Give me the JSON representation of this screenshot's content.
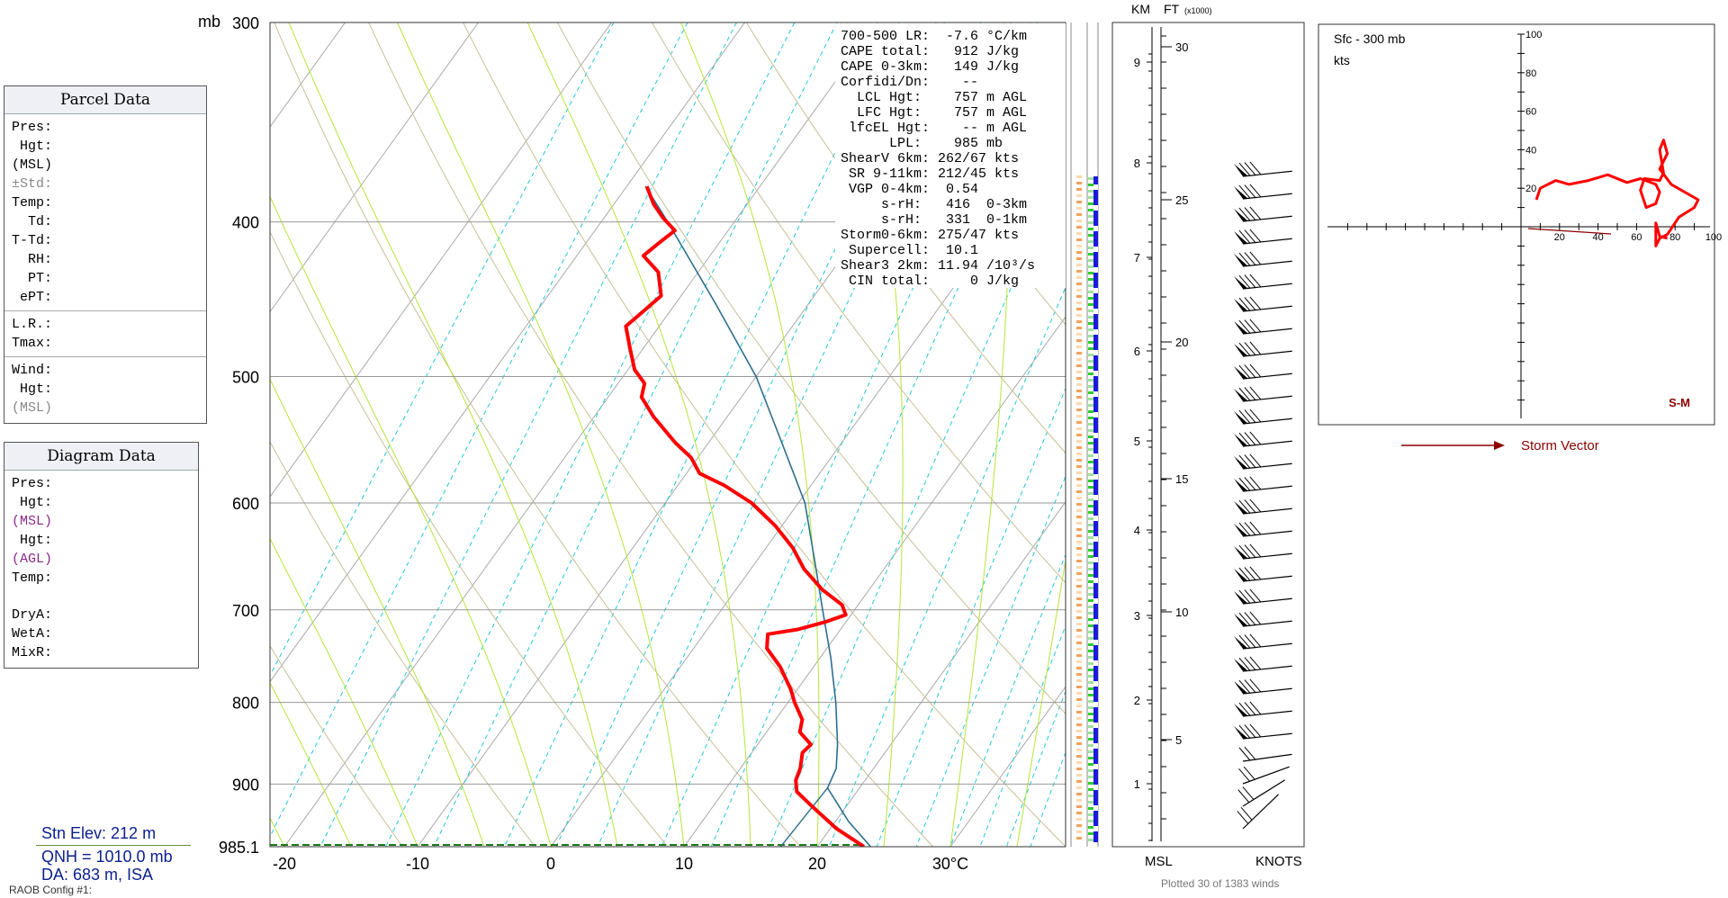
{
  "parcel_panel": {
    "title": "Parcel Data",
    "rows": [
      "Pres:",
      " Hgt:",
      "(MSL)",
      "±Std:",
      "Temp:",
      "  Td:",
      "T-Td:",
      "  RH:",
      "  PT:",
      " ePT:"
    ],
    "rows2": [
      "L.R.:",
      "Tmax:"
    ],
    "rows3": [
      "Wind:",
      " Hgt:",
      "(MSL)"
    ]
  },
  "diagram_panel": {
    "title": "Diagram Data",
    "rows": [
      "Pres:",
      " Hgt:",
      "(MSL)",
      " Hgt:",
      "(AGL)",
      "Temp:"
    ],
    "rows2": [
      "DryA:",
      "WetA:",
      "MixR:"
    ]
  },
  "station": {
    "elev": "Stn Elev: 212 m",
    "qnh": "QNH = 1010.0 mb",
    "da": "DA: 683 m, ISA",
    "config": "RAOB Config #1:"
  },
  "stats": [
    "700-500 LR:  -7.6 °C/km",
    "CAPE total:   912 J/kg",
    "CAPE 0-3km:   149 J/kg",
    "Corfidi/Dn:    --",
    "  LCL Hgt:    757 m AGL",
    "  LFC Hgt:    757 m AGL",
    " lfcEL Hgt:    -- m AGL",
    "      LPL:    985 mb",
    "ShearV 6km: 262/67 kts",
    " SR 9-11km: 212/45 kts",
    " VGP 0-4km:  0.54",
    "     s-rH:   416  0-3km",
    "     s-rH:   331  0-1km",
    "Storm0-6km: 275/47 kts",
    " Supercell:  10.1",
    "Shear3 2km: 11.94 /10³/s",
    " CIN total:     0 J/kg"
  ],
  "wind_labels": {
    "km": "KM",
    "ft": "FT",
    "ft_unit": "(x1000)",
    "msl": "MSL",
    "knots": "KNOTS",
    "plotted": "Plotted 30 of 1383 winds",
    "km_ticks": [
      "1",
      "2",
      "3",
      "4",
      "5",
      "6",
      "7",
      "8",
      "9"
    ],
    "ft_ticks": [
      "5",
      "10",
      "15",
      "20",
      "25",
      "30"
    ]
  },
  "hodograph": {
    "title": "Sfc - 300 mb",
    "unit": "kts",
    "tag": "S-M",
    "storm_vector": "Storm Vector",
    "y_ticks": [
      "20",
      "40",
      "60",
      "80",
      "100"
    ],
    "x_ticks": [
      "20",
      "40",
      "60",
      "80",
      "100"
    ]
  },
  "chart_data": {
    "type": "line",
    "title": "",
    "xlabel": "",
    "ylabel": "mb",
    "x_unit": "°C",
    "pressure_levels": [
      {
        "p": 300,
        "label": "300"
      },
      {
        "p": 400,
        "label": "400"
      },
      {
        "p": 500,
        "label": "500"
      },
      {
        "p": 600,
        "label": "600"
      },
      {
        "p": 700,
        "label": "700"
      },
      {
        "p": 800,
        "label": "800"
      },
      {
        "p": 900,
        "label": "900"
      },
      {
        "p": 985.1,
        "label": "985.1"
      }
    ],
    "temp_ticks": [
      "-20",
      "-10",
      "0",
      "10",
      "20",
      "30°C"
    ],
    "temperature_profile": {
      "name": "Temperature",
      "color": "#ff0000",
      "points": [
        [
          985,
          23.5
        ],
        [
          960,
          20.5
        ],
        [
          930,
          17.5
        ],
        [
          910,
          15.5
        ],
        [
          895,
          14.8
        ],
        [
          880,
          14.5
        ],
        [
          860,
          13.8
        ],
        [
          850,
          14.0
        ],
        [
          835,
          12.5
        ],
        [
          820,
          12.0
        ],
        [
          800,
          10.5
        ],
        [
          785,
          9.5
        ],
        [
          760,
          7.5
        ],
        [
          740,
          5.5
        ],
        [
          725,
          4.8
        ],
        [
          720,
          6.8
        ],
        [
          712,
          8.5
        ],
        [
          705,
          9.6
        ],
        [
          695,
          8.8
        ],
        [
          680,
          6.5
        ],
        [
          660,
          4.0
        ],
        [
          640,
          2.0
        ],
        [
          620,
          -0.5
        ],
        [
          600,
          -3.5
        ],
        [
          585,
          -6.5
        ],
        [
          575,
          -9.0
        ],
        [
          562,
          -10.5
        ],
        [
          550,
          -12.5
        ],
        [
          530,
          -15.5
        ],
        [
          515,
          -17.5
        ],
        [
          505,
          -18.0
        ],
        [
          495,
          -19.5
        ],
        [
          480,
          -21.0
        ],
        [
          465,
          -22.5
        ],
        [
          455,
          -22.0
        ],
        [
          445,
          -21.5
        ],
        [
          430,
          -23.0
        ],
        [
          420,
          -25.0
        ],
        [
          412,
          -24.5
        ],
        [
          405,
          -24.0
        ],
        [
          398,
          -25.5
        ],
        [
          390,
          -27.0
        ],
        [
          380,
          -28.5
        ]
      ]
    },
    "parcel_profile": {
      "name": "Parcel",
      "color": "#2e6e8e",
      "points": [
        [
          985,
          24.0
        ],
        [
          950,
          21.0
        ],
        [
          905,
          17.6
        ],
        [
          880,
          17.2
        ],
        [
          850,
          16.0
        ],
        [
          800,
          13.6
        ],
        [
          750,
          10.8
        ],
        [
          700,
          7.6
        ],
        [
          650,
          4.2
        ],
        [
          600,
          0.5
        ],
        [
          550,
          -4.5
        ],
        [
          500,
          -10.0
        ],
        [
          450,
          -17.0
        ],
        [
          400,
          -25.0
        ],
        [
          380,
          -28.6
        ]
      ]
    },
    "temperature_color": "#ff0000",
    "parcel_color": "#2e6e8e",
    "hodograph_trace": [
      [
        8,
        14
      ],
      [
        10,
        20
      ],
      [
        18,
        24
      ],
      [
        25,
        22
      ],
      [
        35,
        24
      ],
      [
        45,
        27
      ],
      [
        55,
        23
      ],
      [
        62,
        25
      ],
      [
        70,
        22
      ],
      [
        72,
        18
      ],
      [
        70,
        12
      ],
      [
        65,
        10
      ],
      [
        62,
        19
      ],
      [
        64,
        25
      ],
      [
        72,
        24
      ],
      [
        74,
        28
      ],
      [
        72,
        40
      ],
      [
        74,
        45
      ],
      [
        76,
        38
      ],
      [
        72,
        30
      ],
      [
        78,
        22
      ],
      [
        85,
        18
      ],
      [
        92,
        14
      ],
      [
        90,
        10
      ],
      [
        82,
        5
      ],
      [
        76,
        -4
      ],
      [
        72,
        -6
      ],
      [
        70,
        -10
      ],
      [
        70,
        2
      ],
      [
        72,
        -5
      ],
      [
        76,
        -6
      ]
    ]
  }
}
